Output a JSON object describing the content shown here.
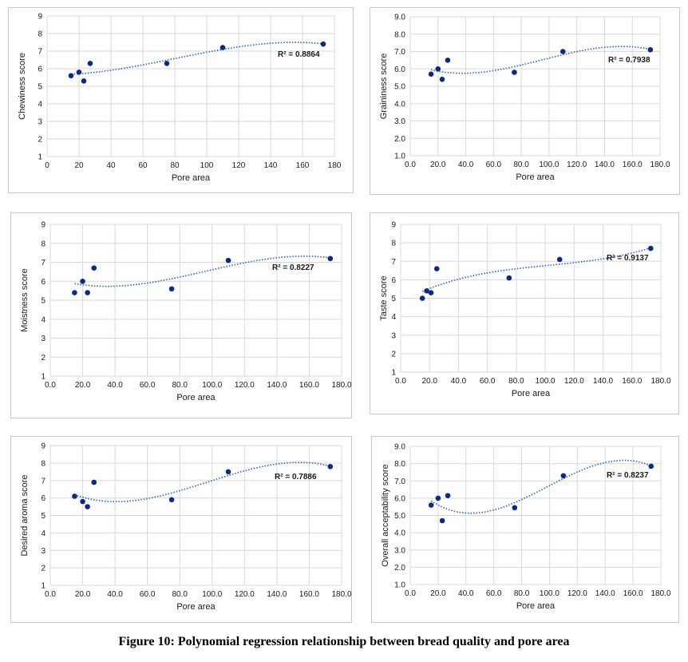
{
  "figure_caption": "Figure 10: Polynomial regression relationship between bread quality and pore area",
  "style": {
    "point_color": "#0a2a8a",
    "trend_color": "#2b5fbf",
    "grid_color": "#d9d9d9",
    "axis_text_color": "#1a1a1a"
  },
  "chart_data": [
    {
      "type": "scatter",
      "xlabel": "Pore area",
      "ylabel": "Chewiness score",
      "xlim": [
        0,
        180
      ],
      "ylim": [
        1,
        9
      ],
      "x_ticks": [
        "0",
        "20",
        "40",
        "60",
        "80",
        "100",
        "120",
        "140",
        "160",
        "180"
      ],
      "y_ticks": [
        "1",
        "2",
        "3",
        "4",
        "5",
        "6",
        "7",
        "8",
        "9"
      ],
      "points": [
        [
          15,
          5.6
        ],
        [
          20,
          5.8
        ],
        [
          23,
          5.3
        ],
        [
          27,
          6.3
        ],
        [
          75,
          6.3
        ],
        [
          110,
          7.2
        ],
        [
          173,
          7.4
        ]
      ],
      "trendline": {
        "order": 3,
        "style": "dotted"
      },
      "r2_label": "R² = 0.8864",
      "grid": "horizontal",
      "legend": "none"
    },
    {
      "type": "scatter",
      "xlabel": "Pore area",
      "ylabel": "Graininess score",
      "xlim": [
        0,
        180
      ],
      "ylim": [
        1,
        9
      ],
      "x_ticks": [
        "0.0",
        "20.0",
        "40.0",
        "60.0",
        "80.0",
        "100.0",
        "120.0",
        "140.0",
        "160.0",
        "180.0"
      ],
      "y_ticks": [
        "1.0",
        "2.0",
        "3.0",
        "4.0",
        "5.0",
        "6.0",
        "7.0",
        "8.0",
        "9.0"
      ],
      "points": [
        [
          15,
          5.7
        ],
        [
          20,
          6.0
        ],
        [
          23,
          5.4
        ],
        [
          27,
          6.5
        ],
        [
          75,
          5.8
        ],
        [
          110,
          7.0
        ],
        [
          173,
          7.1
        ]
      ],
      "trendline": {
        "order": 3,
        "style": "dotted"
      },
      "r2_label": "R² = 0.7938",
      "grid": "horizontal",
      "legend": "none"
    },
    {
      "type": "scatter",
      "xlabel": "Pore area",
      "ylabel": "Moistness score",
      "xlim": [
        0,
        180
      ],
      "ylim": [
        1,
        9
      ],
      "x_ticks": [
        "0.0",
        "20.0",
        "40.0",
        "60.0",
        "80.0",
        "100.0",
        "120.0",
        "140.0",
        "160.0",
        "180.0"
      ],
      "y_ticks": [
        "1",
        "2",
        "3",
        "4",
        "5",
        "6",
        "7",
        "8",
        "9"
      ],
      "points": [
        [
          15,
          5.4
        ],
        [
          20,
          6.0
        ],
        [
          23,
          5.4
        ],
        [
          27,
          6.7
        ],
        [
          75,
          5.6
        ],
        [
          110,
          7.1
        ],
        [
          173,
          7.2
        ]
      ],
      "trendline": {
        "order": 3,
        "style": "dotted"
      },
      "r2_label": "R² = 0.8227",
      "grid": "horizontal",
      "legend": "none"
    },
    {
      "type": "scatter",
      "xlabel": "Pore area",
      "ylabel": "Taste score",
      "xlim": [
        0,
        180
      ],
      "ylim": [
        1,
        9
      ],
      "x_ticks": [
        "0.0",
        "20.0",
        "40.0",
        "60.0",
        "80.0",
        "100.0",
        "120.0",
        "140.0",
        "160.0",
        "180.0"
      ],
      "y_ticks": [
        "1",
        "2",
        "3",
        "4",
        "5",
        "6",
        "7",
        "8",
        "9"
      ],
      "points": [
        [
          15,
          5.0
        ],
        [
          18,
          5.4
        ],
        [
          21,
          5.3
        ],
        [
          25,
          6.6
        ],
        [
          75,
          6.1
        ],
        [
          110,
          7.1
        ],
        [
          173,
          7.7
        ]
      ],
      "trendline": {
        "order": 3,
        "style": "dotted"
      },
      "r2_label": "R² = 0.9137",
      "grid": "horizontal",
      "legend": "none"
    },
    {
      "type": "scatter",
      "xlabel": "Pore area",
      "ylabel": "Desired aroma score",
      "xlim": [
        0,
        180
      ],
      "ylim": [
        1,
        9
      ],
      "x_ticks": [
        "0.0",
        "20.0",
        "40.0",
        "60.0",
        "80.0",
        "100.0",
        "120.0",
        "140.0",
        "160.0",
        "180.0"
      ],
      "y_ticks": [
        "1",
        "2",
        "3",
        "4",
        "5",
        "6",
        "7",
        "8",
        "9"
      ],
      "points": [
        [
          15,
          6.1
        ],
        [
          20,
          5.8
        ],
        [
          23,
          5.5
        ],
        [
          27,
          6.9
        ],
        [
          75,
          5.9
        ],
        [
          110,
          7.5
        ],
        [
          173,
          7.8
        ]
      ],
      "trendline": {
        "order": 3,
        "style": "dotted"
      },
      "r2_label": "R² = 0.7886",
      "grid": "horizontal",
      "legend": "none"
    },
    {
      "type": "scatter",
      "xlabel": "Pore area",
      "ylabel": "Overall acceptability score",
      "xlim": [
        0,
        180
      ],
      "ylim": [
        1,
        9
      ],
      "x_ticks": [
        "0.0",
        "20.0",
        "40.0",
        "60.0",
        "80.0",
        "100.0",
        "120.0",
        "140.0",
        "160.0",
        "180.0"
      ],
      "y_ticks": [
        "1.0",
        "2.0",
        "3.0",
        "4.0",
        "5.0",
        "6.0",
        "7.0",
        "8.0",
        "9.0"
      ],
      "points": [
        [
          15,
          5.6
        ],
        [
          20,
          6.0
        ],
        [
          23,
          4.7
        ],
        [
          27,
          6.15
        ],
        [
          75,
          5.45
        ],
        [
          110,
          7.3
        ],
        [
          173,
          7.85
        ]
      ],
      "trendline": {
        "order": 3,
        "style": "dotted"
      },
      "r2_label": "R² = 0.8237",
      "grid": "horizontal",
      "legend": "none"
    }
  ]
}
